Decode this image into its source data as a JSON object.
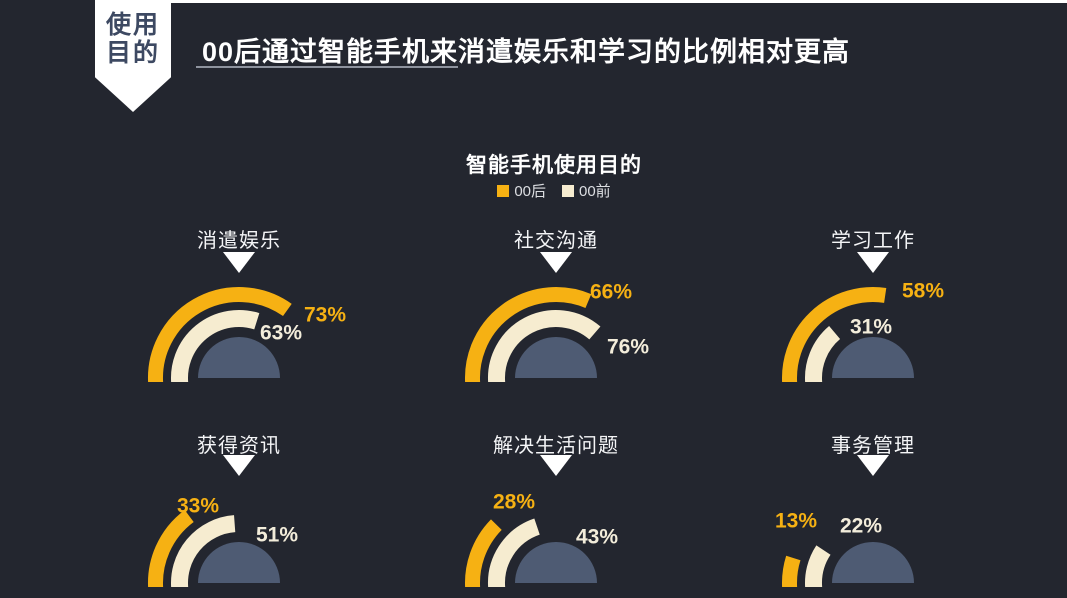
{
  "slide": {
    "badge": {
      "line1": "使用",
      "line2": "目的"
    },
    "title": "00后通过智能手机来消遣娱乐和学习的比例相对更高"
  },
  "chart": {
    "title": "智能手机使用目的",
    "legend": [
      {
        "label": "00后",
        "color": "#F6B113"
      },
      {
        "label": "00前",
        "color": "#F6ECD0"
      }
    ],
    "gauges": [
      {
        "label": "消遣娱乐",
        "post00": 73,
        "pre00": 63
      },
      {
        "label": "社交沟通",
        "post00": 66,
        "pre00": 76
      },
      {
        "label": "学习工作",
        "post00": 58,
        "pre00": 31
      },
      {
        "label": "获得资讯",
        "post00": 33,
        "pre00": 51
      },
      {
        "label": "解决生活问题",
        "post00": 28,
        "pre00": 43
      },
      {
        "label": "事务管理",
        "post00": 13,
        "pre00": 22
      }
    ],
    "unit": "%"
  },
  "colors": {
    "background": "#23262F",
    "accent_yellow": "#F6B113",
    "cream": "#F6ECD0",
    "dome_slate": "#4E5B73",
    "badge_text": "#3D4962",
    "title_text": "#FFFFFF"
  },
  "chart_data": {
    "type": "pie",
    "variant": "semicircle-gauge-grid",
    "title": "智能手机使用目的",
    "categories": [
      "消遣娱乐",
      "社交沟通",
      "学习工作",
      "获得资讯",
      "解决生活问题",
      "事务管理"
    ],
    "series": [
      {
        "name": "00后",
        "color": "#F6B113",
        "values": [
          73,
          66,
          58,
          33,
          28,
          13
        ]
      },
      {
        "name": "00前",
        "color": "#F6ECD0",
        "values": [
          63,
          76,
          31,
          51,
          43,
          22
        ]
      }
    ],
    "unit": "%",
    "value_range": [
      0,
      100
    ],
    "legend_position": "top-center",
    "grid": false
  }
}
